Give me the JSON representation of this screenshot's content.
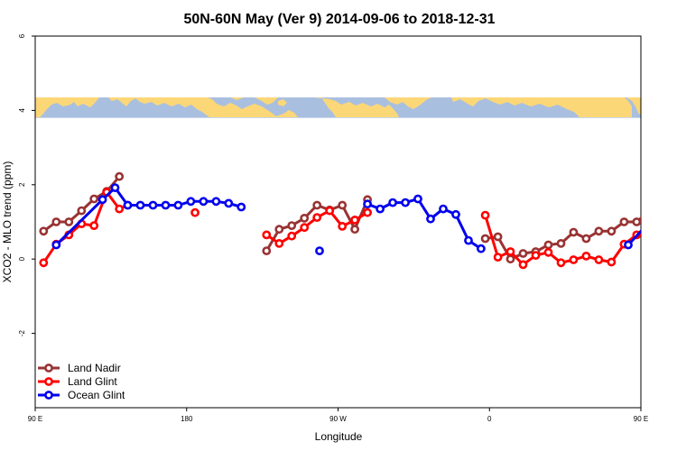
{
  "chart_data": {
    "type": "line",
    "title": "50N-60N May (Ver 9)   2014-09-06 to 2018-12-31",
    "xlabel": "Longitude",
    "ylabel": "XCO2 - MLO trend (ppm)",
    "xlim": [
      90,
      450
    ],
    "ylim": [
      -4,
      6
    ],
    "x_ticks": [
      {
        "value": 90,
        "label": "90 E"
      },
      {
        "value": 180,
        "label": "180"
      },
      {
        "value": 270,
        "label": "90 W"
      },
      {
        "value": 360,
        "label": "0"
      },
      {
        "value": 450,
        "label": "90 E"
      },
      {
        "value": 540,
        "label": "180"
      }
    ],
    "y_ticks": [
      {
        "value": -2,
        "label": "-2"
      },
      {
        "value": 0,
        "label": "0"
      },
      {
        "value": 2,
        "label": "2"
      },
      {
        "value": 4,
        "label": "4"
      },
      {
        "value": 6,
        "label": "6"
      }
    ],
    "grid": false,
    "legend_position": "bottom-left",
    "map_band": {
      "y_range": [
        3.8,
        4.35
      ],
      "ocean_color": "#a9bfe0",
      "land_color": "#fcd777"
    },
    "series": [
      {
        "name": "Land Nadir",
        "color": "#993333",
        "segments": [
          [
            [
              95,
              0.75
            ],
            [
              102.5,
              1.0
            ],
            [
              110,
              1.0
            ],
            [
              117.5,
              1.3
            ],
            [
              125,
              1.62
            ],
            [
              132.5,
              1.82
            ],
            [
              140,
              2.22
            ]
          ],
          [
            [
              227.5,
              0.22
            ],
            [
              235,
              0.8
            ],
            [
              242.5,
              0.9
            ],
            [
              250,
              1.1
            ],
            [
              257.5,
              1.45
            ],
            [
              265,
              1.32
            ],
            [
              272.5,
              1.45
            ],
            [
              280,
              0.8
            ],
            [
              287.5,
              1.6
            ]
          ],
          [
            [
              357.5,
              0.55
            ],
            [
              365,
              0.6
            ],
            [
              372.5,
              0.0
            ],
            [
              380,
              0.15
            ],
            [
              387.5,
              0.2
            ],
            [
              395,
              0.38
            ],
            [
              402.5,
              0.42
            ],
            [
              410,
              0.72
            ],
            [
              417.5,
              0.55
            ],
            [
              425,
              0.75
            ],
            [
              432.5,
              0.75
            ],
            [
              440,
              1.0
            ],
            [
              447.5,
              1.0
            ],
            [
              455,
              1.3
            ],
            [
              462.5,
              1.62
            ],
            [
              470,
              1.82
            ],
            [
              477.5,
              2.22
            ]
          ]
        ]
      },
      {
        "name": "Land Glint",
        "color": "#ff0000",
        "segments": [
          [
            [
              95,
              -0.1
            ],
            [
              102.5,
              0.4
            ],
            [
              110,
              0.65
            ],
            [
              117.5,
              0.95
            ],
            [
              125,
              0.9
            ],
            [
              132.5,
              1.8
            ],
            [
              140,
              1.35
            ],
            [
              145,
              1.45
            ]
          ],
          [
            [
              185,
              1.25
            ]
          ],
          [
            [
              227.5,
              0.65
            ],
            [
              235,
              0.42
            ],
            [
              242.5,
              0.62
            ],
            [
              250,
              0.85
            ],
            [
              257.5,
              1.12
            ],
            [
              265,
              1.3
            ],
            [
              272.5,
              0.88
            ],
            [
              280,
              1.05
            ],
            [
              287.5,
              1.25
            ]
          ],
          [
            [
              357.5,
              1.18
            ],
            [
              365,
              0.05
            ],
            [
              372.5,
              0.2
            ],
            [
              380,
              -0.15
            ],
            [
              387.5,
              0.1
            ],
            [
              395,
              0.18
            ],
            [
              402.5,
              -0.1
            ],
            [
              410,
              -0.02
            ],
            [
              417.5,
              0.08
            ],
            [
              425,
              -0.02
            ],
            [
              432.5,
              -0.08
            ],
            [
              440,
              0.4
            ],
            [
              447.5,
              0.65
            ],
            [
              455,
              0.95
            ],
            [
              462.5,
              0.9
            ],
            [
              470,
              1.8
            ],
            [
              477.5,
              1.35
            ],
            [
              482.5,
              1.45
            ]
          ]
        ]
      },
      {
        "name": "Ocean Glint",
        "color": "#0000ee",
        "segments": [
          [
            [
              102.5,
              0.38
            ],
            [
              130,
              1.6
            ],
            [
              137.5,
              1.92
            ],
            [
              145,
              1.45
            ],
            [
              152.5,
              1.45
            ],
            [
              160,
              1.45
            ],
            [
              167.5,
              1.45
            ],
            [
              175,
              1.45
            ],
            [
              182.5,
              1.55
            ],
            [
              190,
              1.55
            ],
            [
              197.5,
              1.55
            ],
            [
              205,
              1.5
            ],
            [
              212.5,
              1.4
            ]
          ],
          [
            [
              259,
              0.22
            ]
          ],
          [
            [
              287.5,
              1.48
            ],
            [
              295,
              1.35
            ],
            [
              302.5,
              1.52
            ],
            [
              310,
              1.52
            ],
            [
              317.5,
              1.62
            ],
            [
              325,
              1.08
            ],
            [
              332.5,
              1.35
            ],
            [
              340,
              1.2
            ],
            [
              347.5,
              0.5
            ],
            [
              355,
              0.28
            ]
          ],
          [
            [
              442.5,
              0.38
            ],
            [
              467.5,
              1.6
            ],
            [
              475,
              1.92
            ],
            [
              482.5,
              1.45
            ],
            [
              490,
              1.45
            ],
            [
              497.5,
              1.45
            ]
          ]
        ]
      }
    ]
  }
}
